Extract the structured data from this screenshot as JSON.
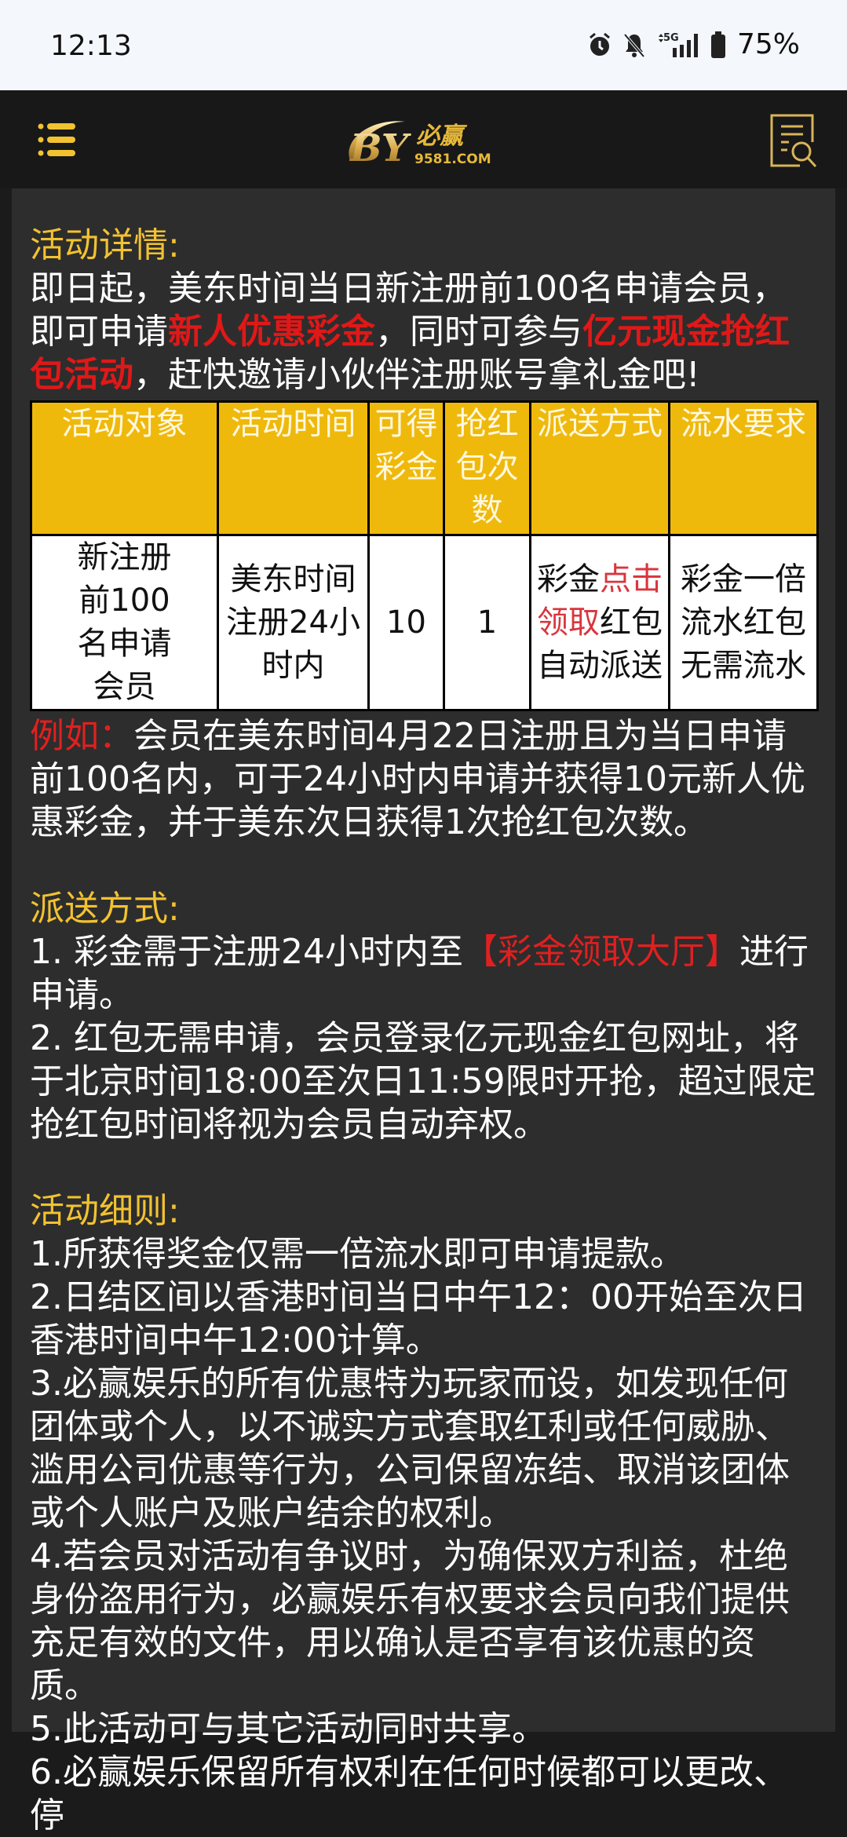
{
  "status_bar": {
    "time": "12:13",
    "battery": "75%",
    "network": "5G",
    "icons": [
      "alarm-icon",
      "bell-muted-icon",
      "signal-5g-icon",
      "battery-icon"
    ]
  },
  "header": {
    "logo_text": "必赢",
    "logo_sub": "9581.COM",
    "logo_mark": "BY",
    "menu_icon": "menu-list-icon",
    "right_icon": "document-search-icon"
  },
  "colors": {
    "accent": "#efb90c",
    "heading": "#f2c230",
    "highlight": "#e01818"
  },
  "details": {
    "title": "活动详情:",
    "p1_a": "即日起，美东时间当日新注册前100名申请会员，即可申请",
    "p1_red1": "新人优惠彩金",
    "p1_b": "，同时可参与",
    "p1_red2": "亿元现金抢红包活动",
    "p1_c": "，赶快邀请小伙伴注册账号拿礼金吧!"
  },
  "table": {
    "headers": [
      "活动对象",
      "活动时间",
      "可得彩金",
      "抢红包次数",
      "派送方式",
      "流水要求"
    ],
    "row": {
      "target": "新注册前100名申请会员",
      "time": "美东时间注册24小时内",
      "bonus": "10",
      "count": "1",
      "delivery_a": "彩金",
      "delivery_link": "点击领取",
      "delivery_b": "红包自动派送",
      "turnover": "彩金一倍流水红包无需流水"
    }
  },
  "example": {
    "label": "例如：",
    "text": "会员在美东时间4月22日注册且为当日申请前100名内，可于24小时内申请并获得10元新人优惠彩金，并于美东次日获得1次抢红包次数。"
  },
  "delivery": {
    "title": "派送方式:",
    "item1_a": "1. 彩金需于注册24小时内至",
    "item1_link": "【彩金领取大厅】",
    "item1_b": "进行申请。",
    "item2": "2. 红包无需申请，会员登录亿元现金红包网址，将于北京时间18:00至次日11:59限时开抢，超过限定抢红包时间将视为会员自动弃权。"
  },
  "rules": {
    "title": "活动细则:",
    "items": [
      "1.所获得奖金仅需一倍流水即可申请提款。",
      "2.日结区间以香港时间当日中午12：00开始至次日香港时间中午12:00计算。",
      "3.必赢娱乐的所有优惠特为玩家而设，如发现任何团体或个人，以不诚实方式套取红利或任何威胁、滥用公司优惠等行为，公司保留冻结、取消该团体或个人账户及账户结余的权利。",
      "4.若会员对活动有争议时，为确保双方利益，杜绝身份盗用行为，必赢娱乐有权要求会员向我们提供充足有效的文件，用以确认是否享有该优惠的资质。",
      "5.此活动可与其它活动同时共享。",
      "6.必赢娱乐保留所有权利在任何时候都可以更改、停"
    ]
  }
}
